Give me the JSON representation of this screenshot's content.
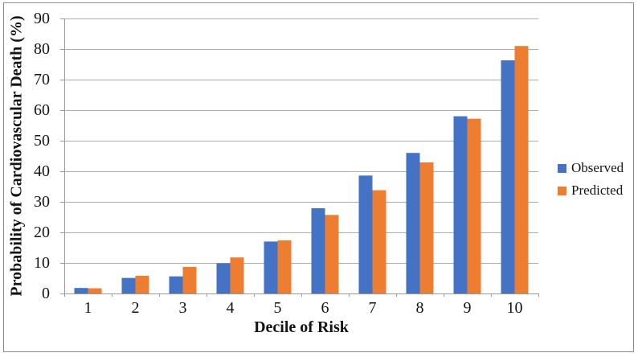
{
  "chart_data": {
    "type": "bar",
    "title": "",
    "xlabel": "Decile of Risk",
    "ylabel": "Probability of Cardiovascular Death (%)",
    "categories": [
      "1",
      "2",
      "3",
      "4",
      "5",
      "6",
      "7",
      "8",
      "9",
      "10"
    ],
    "series": [
      {
        "name": "Observed",
        "color": "#4472C4",
        "values": [
          1.8,
          5.1,
          5.6,
          9.9,
          17.0,
          27.9,
          38.6,
          46.0,
          58.0,
          76.3
        ]
      },
      {
        "name": "Predicted",
        "color": "#ED7D31",
        "values": [
          1.7,
          5.8,
          8.7,
          11.8,
          17.4,
          25.7,
          33.8,
          42.9,
          57.2,
          81.0
        ]
      }
    ],
    "ylim": [
      0,
      90
    ],
    "yticks": [
      0,
      10,
      20,
      30,
      40,
      50,
      60,
      70,
      80,
      90
    ],
    "grid": true,
    "legend_position": "right"
  },
  "colors": {
    "gridline": "#aeaeae",
    "axis": "#9a9a9a",
    "figure_border": "#8c8c8c",
    "text": "#141414",
    "background": "#ffffff"
  }
}
